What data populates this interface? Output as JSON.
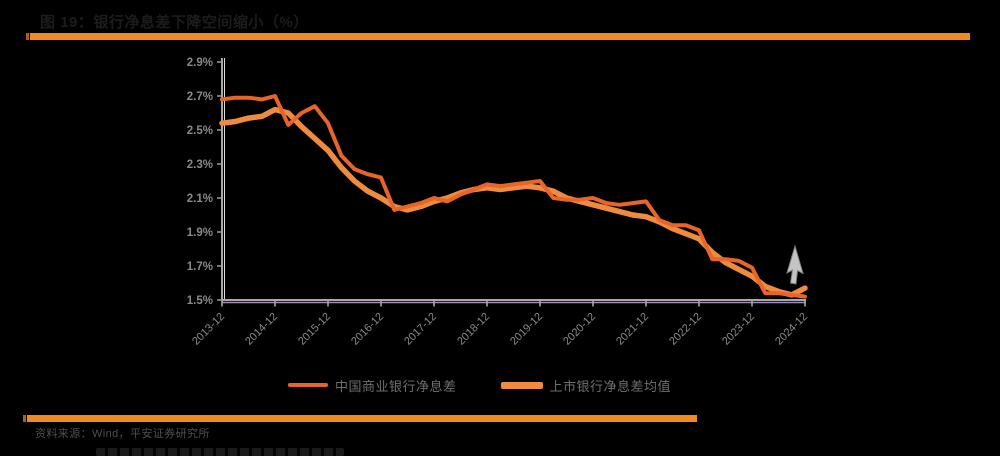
{
  "figure": {
    "title": "图 19：银行净息差下降空间缩小（%）"
  },
  "accent_color": "#F18A23",
  "legend": {
    "items": [
      {
        "label": "中国商业银行净息差",
        "color": "#E8652A"
      },
      {
        "label": "上市银行净息差均值",
        "color": "#EF8B3F"
      }
    ]
  },
  "source_note": "资料来源：Wind，平安证券研究所",
  "chart_data": {
    "type": "line",
    "title": "银行净息差下降空间缩小（%）",
    "xlabel": "",
    "ylabel": "",
    "ylim": [
      1.5,
      2.9
    ],
    "y_tick_labels": [
      "2.9%",
      "2.7%",
      "2.5%",
      "2.3%",
      "2.1%",
      "1.9%",
      "1.7%",
      "1.5%"
    ],
    "y_tick_values": [
      2.9,
      2.7,
      2.5,
      2.3,
      2.1,
      1.9,
      1.7,
      1.5
    ],
    "x_tick_labels": [
      "2013-12",
      "2014-12",
      "2015-12",
      "2016-12",
      "2017-12",
      "2018-12",
      "2019-12",
      "2020-12",
      "2021-12",
      "2022-12",
      "2023-12",
      "2024-12"
    ],
    "x_tick_every": 4,
    "grid": false,
    "legend_position": "bottom",
    "axis_color": "#a8a8a8",
    "axis_accent_color": "#a58cc0",
    "tick_label_color": "#8a8a8a",
    "series": [
      {
        "name": "中国商业银行净息差",
        "color": "#E8652A",
        "width": 4,
        "values": [
          2.68,
          2.69,
          2.69,
          2.68,
          2.7,
          2.53,
          2.6,
          2.64,
          2.54,
          2.35,
          2.27,
          2.24,
          2.22,
          2.03,
          2.05,
          2.07,
          2.1,
          2.08,
          2.12,
          2.15,
          2.18,
          2.17,
          2.18,
          2.19,
          2.2,
          2.1,
          2.09,
          2.09,
          2.1,
          2.07,
          2.06,
          2.07,
          2.08,
          1.97,
          1.94,
          1.94,
          1.91,
          1.74,
          1.74,
          1.73,
          1.69,
          1.54,
          1.54,
          1.53,
          1.52
        ]
      },
      {
        "name": "上市银行净息差均值",
        "color": "#EF8B3F",
        "width": 5.5,
        "values": [
          2.54,
          2.55,
          2.57,
          2.58,
          2.62,
          2.6,
          2.52,
          2.45,
          2.38,
          2.28,
          2.2,
          2.14,
          2.1,
          2.05,
          2.03,
          2.05,
          2.08,
          2.1,
          2.13,
          2.15,
          2.16,
          2.15,
          2.16,
          2.17,
          2.16,
          2.14,
          2.1,
          2.08,
          2.06,
          2.04,
          2.02,
          2.0,
          1.99,
          1.96,
          1.92,
          1.89,
          1.86,
          1.78,
          1.72,
          1.68,
          1.64,
          1.58,
          1.55,
          1.53,
          1.57
        ]
      }
    ]
  }
}
